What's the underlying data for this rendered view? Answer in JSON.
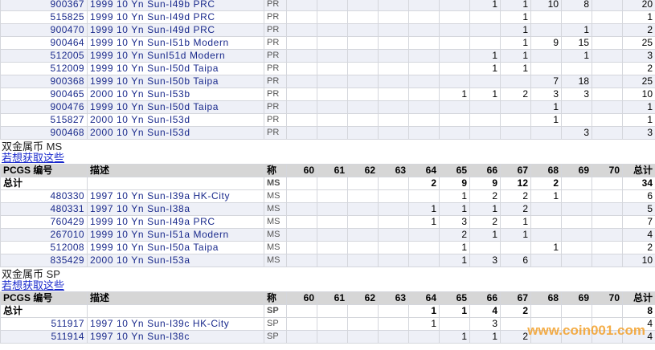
{
  "sections": [
    {
      "rows": [
        {
          "pcgs": "900367",
          "description": "1999 10 Yn Sun-I49b PRC",
          "grade": "PR",
          "counts": [
            null,
            null,
            null,
            null,
            null,
            null,
            1,
            1,
            10,
            8,
            null
          ],
          "total": 20
        },
        {
          "pcgs": "515825",
          "description": "1999 10 Yn Sun-I49d PRC",
          "grade": "PR",
          "counts": [
            null,
            null,
            null,
            null,
            null,
            null,
            null,
            1,
            null,
            null,
            null
          ],
          "total": 1
        },
        {
          "pcgs": "900470",
          "description": "1999 10 Yn Sun-I49d PRC",
          "grade": "PR",
          "counts": [
            null,
            null,
            null,
            null,
            null,
            null,
            null,
            1,
            null,
            1,
            null
          ],
          "total": 2
        },
        {
          "pcgs": "900464",
          "description": "1999 10 Yn Sun-I51b Modern",
          "grade": "PR",
          "counts": [
            null,
            null,
            null,
            null,
            null,
            null,
            null,
            1,
            9,
            15,
            null
          ],
          "total": 25
        },
        {
          "pcgs": "512005",
          "description": "1999 10 Yn SunI51d Modern",
          "grade": "PR",
          "counts": [
            null,
            null,
            null,
            null,
            null,
            null,
            1,
            1,
            null,
            1,
            null
          ],
          "total": 3
        },
        {
          "pcgs": "512009",
          "description": "1999 10 Yn Sun-I50d Taipa",
          "grade": "PR",
          "counts": [
            null,
            null,
            null,
            null,
            null,
            null,
            1,
            1,
            null,
            null,
            null
          ],
          "total": 2
        },
        {
          "pcgs": "900368",
          "description": "1999 10 Yn Sun-I50b Taipa",
          "grade": "PR",
          "counts": [
            null,
            null,
            null,
            null,
            null,
            null,
            null,
            null,
            7,
            18,
            null
          ],
          "total": 25
        },
        {
          "pcgs": "900465",
          "description": "2000 10 Yn Sun-I53b",
          "grade": "PR",
          "counts": [
            null,
            null,
            null,
            null,
            null,
            1,
            1,
            2,
            3,
            3,
            null
          ],
          "total": 10
        },
        {
          "pcgs": "900476",
          "description": "1999 10 Yn Sun-I50d Taipa",
          "grade": "PR",
          "counts": [
            null,
            null,
            null,
            null,
            null,
            null,
            null,
            null,
            1,
            null,
            null
          ],
          "total": 1
        },
        {
          "pcgs": "515827",
          "description": "2000 10 Yn Sun-I53d",
          "grade": "PR",
          "counts": [
            null,
            null,
            null,
            null,
            null,
            null,
            null,
            null,
            1,
            null,
            null
          ],
          "total": 1
        },
        {
          "pcgs": "900468",
          "description": "2000 10 Yn Sun-I53d",
          "grade": "PR",
          "counts": [
            null,
            null,
            null,
            null,
            null,
            null,
            null,
            null,
            null,
            3,
            null
          ],
          "total": 3
        }
      ]
    },
    {
      "heading": "双金属币  MS",
      "link": "若想获取这些",
      "header": [
        "PCGS 编号",
        "描述",
        "称",
        "60",
        "61",
        "62",
        "63",
        "64",
        "65",
        "66",
        "67",
        "68",
        "69",
        "70",
        "总计"
      ],
      "total_row": {
        "label": "总计",
        "grade": "MS",
        "counts": [
          null,
          null,
          null,
          null,
          2,
          9,
          9,
          12,
          2,
          null,
          null
        ],
        "total": 34
      },
      "rows": [
        {
          "pcgs": "480330",
          "description": "1997 10 Yn Sun-I39a HK-City",
          "grade": "MS",
          "counts": [
            null,
            null,
            null,
            null,
            null,
            1,
            2,
            2,
            1,
            null,
            null
          ],
          "total": 6
        },
        {
          "pcgs": "480331",
          "description": "1997 10 Yn Sun-I38a",
          "grade": "MS",
          "counts": [
            null,
            null,
            null,
            null,
            1,
            1,
            1,
            2,
            null,
            null,
            null
          ],
          "total": 5
        },
        {
          "pcgs": "760429",
          "description": "1999 10 Yn Sun-I49a PRC",
          "grade": "MS",
          "counts": [
            null,
            null,
            null,
            null,
            1,
            3,
            2,
            1,
            null,
            null,
            null
          ],
          "total": 7
        },
        {
          "pcgs": "267010",
          "description": "1999 10 Yn Sun-I51a Modern",
          "grade": "MS",
          "counts": [
            null,
            null,
            null,
            null,
            null,
            2,
            1,
            1,
            null,
            null,
            null
          ],
          "total": 4
        },
        {
          "pcgs": "512008",
          "description": "1999 10 Yn Sun-I50a Taipa",
          "grade": "MS",
          "counts": [
            null,
            null,
            null,
            null,
            null,
            1,
            null,
            null,
            1,
            null,
            null
          ],
          "total": 2
        },
        {
          "pcgs": "835429",
          "description": "2000 10 Yn Sun-I53a",
          "grade": "MS",
          "counts": [
            null,
            null,
            null,
            null,
            null,
            1,
            3,
            6,
            null,
            null,
            null
          ],
          "total": 10
        }
      ]
    },
    {
      "heading": "双金属币  SP",
      "link": "若想获取这些",
      "header": [
        "PCGS 编号",
        "描述",
        "称",
        "60",
        "61",
        "62",
        "63",
        "64",
        "65",
        "66",
        "67",
        "68",
        "69",
        "70",
        "总计"
      ],
      "total_row": {
        "label": "总计",
        "grade": "SP",
        "counts": [
          null,
          null,
          null,
          null,
          1,
          1,
          4,
          2,
          null,
          null,
          null
        ],
        "total": 8
      },
      "rows": [
        {
          "pcgs": "511917",
          "description": "1997 10 Yn Sun-I39c HK-City",
          "grade": "SP",
          "counts": [
            null,
            null,
            null,
            null,
            1,
            null,
            3,
            null,
            null,
            null,
            null
          ],
          "total": 4
        },
        {
          "pcgs": "511914",
          "description": "1997 10 Yn Sun-I38c",
          "grade": "SP",
          "counts": [
            null,
            null,
            null,
            null,
            null,
            1,
            1,
            2,
            null,
            null,
            null
          ],
          "total": 4
        }
      ]
    }
  ],
  "watermark": "www.coin001.com"
}
